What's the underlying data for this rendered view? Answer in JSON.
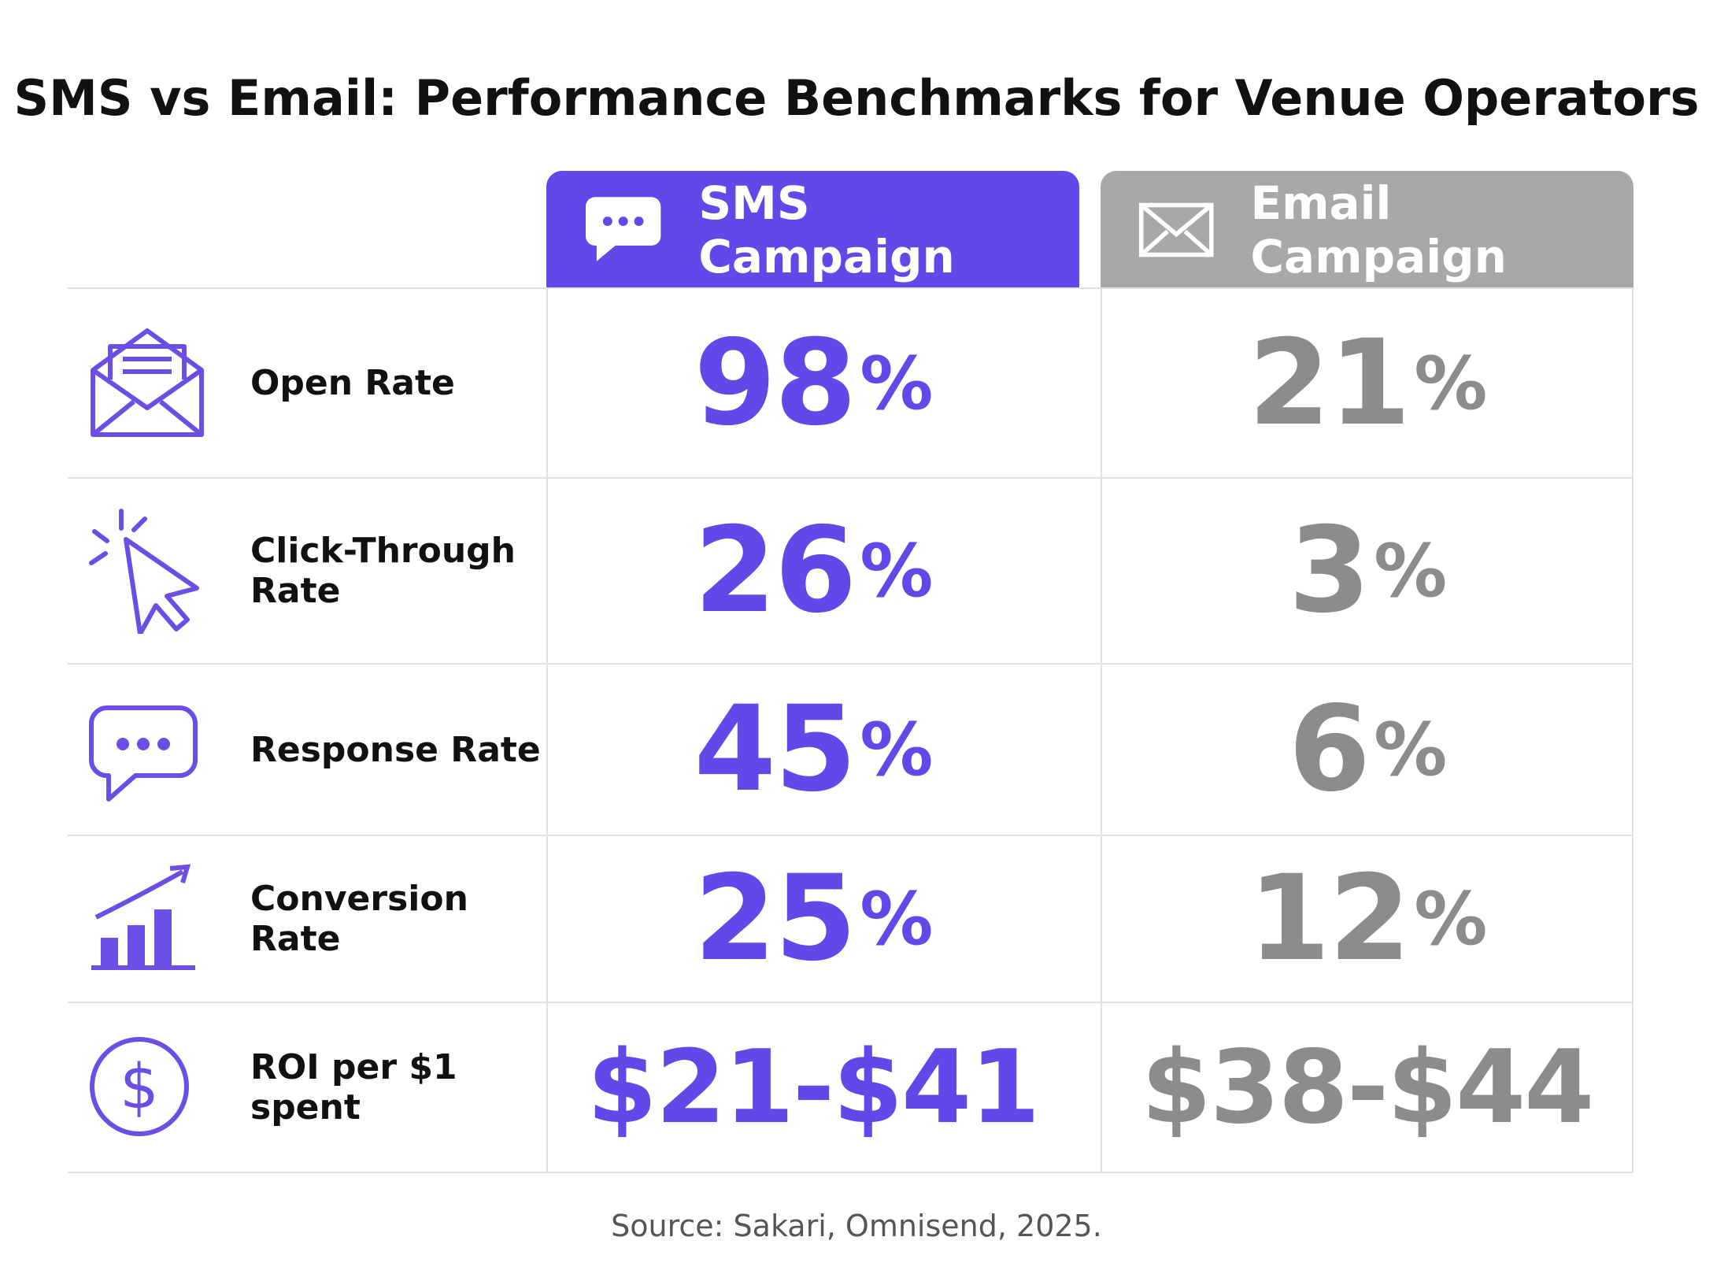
{
  "title": "SMS vs Email: Performance Benchmarks for Venue Operators",
  "columns": [
    "SMS Campaign",
    "Email Campaign"
  ],
  "rows": [
    {
      "label": "Open Rate",
      "sms": "98%",
      "email": "21%"
    },
    {
      "label": "Click-Through Rate",
      "sms": "26%",
      "email": "3%"
    },
    {
      "label": "Response Rate",
      "sms": "45%",
      "email": "6%"
    },
    {
      "label": "Conversion Rate",
      "sms": "25%",
      "email": "12%"
    },
    {
      "label": "ROI per $1 spent",
      "sms": "$21-$41",
      "email": "$38-$44"
    }
  ],
  "source": "Source: Sakari, Omnisend, 2025."
}
